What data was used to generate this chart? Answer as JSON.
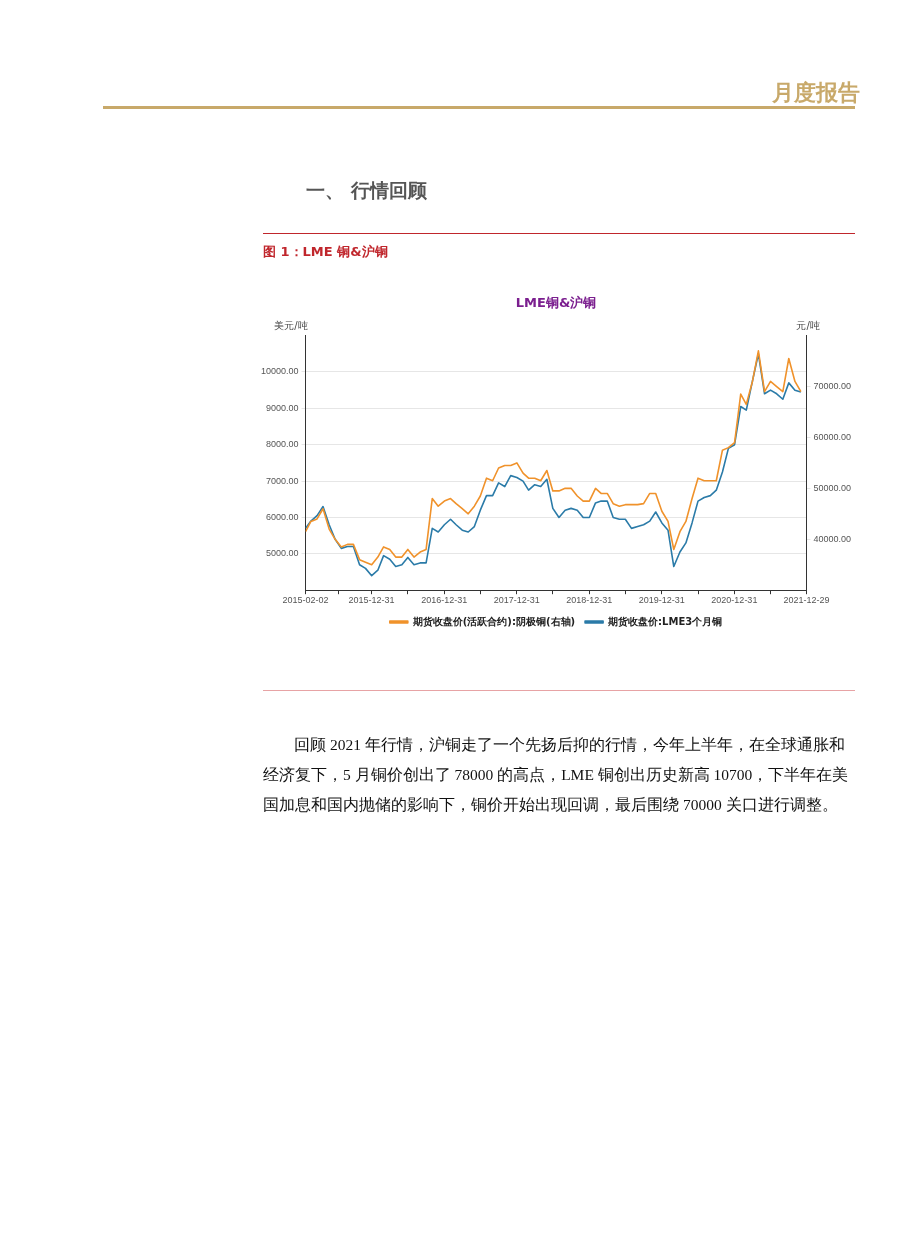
{
  "chart_data": {
    "type": "line",
    "title": "LME铜&沪铜",
    "subtitle": "图 1：LME 铜&沪铜",
    "ylabel": "美元/吨",
    "y2label": "元/吨",
    "annotations": [
      "月度报告",
      "一、 行情回顾",
      "回顾 2021 年行情，沪铜走了一个先扬后抑的行情，今年上半年，在全球通胀和经济复下，5 月铜价创出了 78000 的高点，LME 铜创出历史新高 10700，下半年在美国加息和国内抛储的影响下，铜价开始出现回调，最后围绕 70000 关口进行调整。"
    ],
    "x": [
      "2015-02-02",
      "2015-03",
      "2015-04",
      "2015-05",
      "2015-06",
      "2015-07",
      "2015-08",
      "2015-09",
      "2015-10",
      "2015-11",
      "2015-12",
      "2016-01",
      "2016-02",
      "2016-03",
      "2016-04",
      "2016-05",
      "2016-06",
      "2016-07",
      "2016-08",
      "2016-09",
      "2016-10",
      "2016-11",
      "2016-12",
      "2017-01",
      "2017-02",
      "2017-03",
      "2017-04",
      "2017-05",
      "2017-06",
      "2017-07",
      "2017-08",
      "2017-09",
      "2017-10",
      "2017-11",
      "2017-12",
      "2018-01",
      "2018-02",
      "2018-03",
      "2018-04",
      "2018-05",
      "2018-06",
      "2018-07",
      "2018-08",
      "2018-09",
      "2018-10",
      "2018-11",
      "2018-12",
      "2019-01",
      "2019-02",
      "2019-03",
      "2019-04",
      "2019-05",
      "2019-06",
      "2019-07",
      "2019-08",
      "2019-09",
      "2019-10",
      "2019-11",
      "2019-12",
      "2020-01",
      "2020-02",
      "2020-03",
      "2020-04",
      "2020-05",
      "2020-06",
      "2020-07",
      "2020-08",
      "2020-09",
      "2020-10",
      "2020-11",
      "2020-12",
      "2021-01",
      "2021-02",
      "2021-03",
      "2021-04",
      "2021-05",
      "2021-06",
      "2021-07",
      "2021-08",
      "2021-09",
      "2021-10",
      "2021-11",
      "2021-12"
    ],
    "series": [
      {
        "name": "期货收盘价:LME3个月铜",
        "color": "#2b7ba8",
        "axis": "y",
        "values": [
          5700,
          5900,
          6050,
          6300,
          5800,
          5400,
          5150,
          5200,
          5200,
          4700,
          4600,
          4400,
          4550,
          4950,
          4850,
          4650,
          4700,
          4900,
          4700,
          4750,
          4750,
          5700,
          5600,
          5800,
          5950,
          5800,
          5650,
          5600,
          5750,
          6200,
          6600,
          6600,
          6950,
          6850,
          7150,
          7100,
          7000,
          6750,
          6900,
          6850,
          7050,
          6250,
          6000,
          6200,
          6250,
          6200,
          6000,
          6000,
          6400,
          6450,
          6450,
          6000,
          5950,
          5950,
          5700,
          5750,
          5800,
          5900,
          6150,
          5850,
          5650,
          4650,
          5050,
          5300,
          5850,
          6450,
          6550,
          6600,
          6750,
          7250,
          7900,
          8000,
          9050,
          8950,
          9750,
          10500,
          9400,
          9500,
          9400,
          9250,
          9700,
          9500,
          9450
        ]
      },
      {
        "name": "期货收盘价(活跃合约):阴极铜(右轴)",
        "color": "#f0922b",
        "axis": "y2",
        "values": [
          41500,
          43500,
          44000,
          46000,
          42000,
          40000,
          38500,
          39000,
          39000,
          36000,
          35500,
          35000,
          36500,
          38500,
          38000,
          36500,
          36500,
          38000,
          36500,
          37500,
          38000,
          48000,
          46500,
          47500,
          48000,
          47000,
          46000,
          45000,
          46500,
          48500,
          52000,
          51500,
          54000,
          54500,
          54500,
          55000,
          53000,
          52000,
          52000,
          51500,
          53500,
          49500,
          49500,
          50000,
          50000,
          48500,
          47500,
          47500,
          50000,
          49000,
          49000,
          47000,
          46500,
          46800,
          46800,
          46800,
          47000,
          49000,
          49000,
          45500,
          43500,
          38000,
          41500,
          43500,
          48000,
          52000,
          51500,
          51500,
          51500,
          57500,
          58000,
          59000,
          68500,
          66500,
          71000,
          77000,
          69000,
          71000,
          70000,
          69000,
          75500,
          71000,
          69000
        ]
      }
    ],
    "xlim": [
      "2015-02-02",
      "2021-12-29"
    ],
    "xticks": [
      {
        "value": "2015-02-02",
        "label": "2015-02-02"
      },
      {
        "value": "2015-07-17",
        "label": null
      },
      {
        "value": "2015-12-31",
        "label": "2015-12-31"
      },
      {
        "value": "2016-07-01",
        "label": null
      },
      {
        "value": "2016-12-31",
        "label": "2016-12-31"
      },
      {
        "value": "2017-07-01",
        "label": null
      },
      {
        "value": "2017-12-31",
        "label": "2017-12-31"
      },
      {
        "value": "2018-07-01",
        "label": null
      },
      {
        "value": "2018-12-31",
        "label": "2018-12-31"
      },
      {
        "value": "2019-07-01",
        "label": null
      },
      {
        "value": "2019-12-31",
        "label": "2019-12-31"
      },
      {
        "value": "2020-07-01",
        "label": null
      },
      {
        "value": "2020-12-31",
        "label": "2020-12-31"
      },
      {
        "value": "2021-07-01",
        "label": null
      },
      {
        "value": "2021-12-29",
        "label": "2021-12-29"
      }
    ],
    "ylim": [
      4000,
      11000
    ],
    "yticks": [
      {
        "value": 5000,
        "label": "5000.00"
      },
      {
        "value": 6000,
        "label": "6000.00"
      },
      {
        "value": 7000,
        "label": "7000.00"
      },
      {
        "value": 8000,
        "label": "8000.00"
      },
      {
        "value": 9000,
        "label": "9000.00"
      },
      {
        "value": 10000,
        "label": "10000.00"
      }
    ],
    "y2lim": [
      30000,
      80000
    ],
    "y2ticks": [
      {
        "value": 40000,
        "label": "40000.00"
      },
      {
        "value": 50000,
        "label": "50000.00"
      },
      {
        "value": 60000,
        "label": "60000.00"
      },
      {
        "value": 70000,
        "label": "70000.00"
      }
    ],
    "grid": "y",
    "legend": "bottom",
    "marker": "none",
    "line_style": "solid"
  }
}
